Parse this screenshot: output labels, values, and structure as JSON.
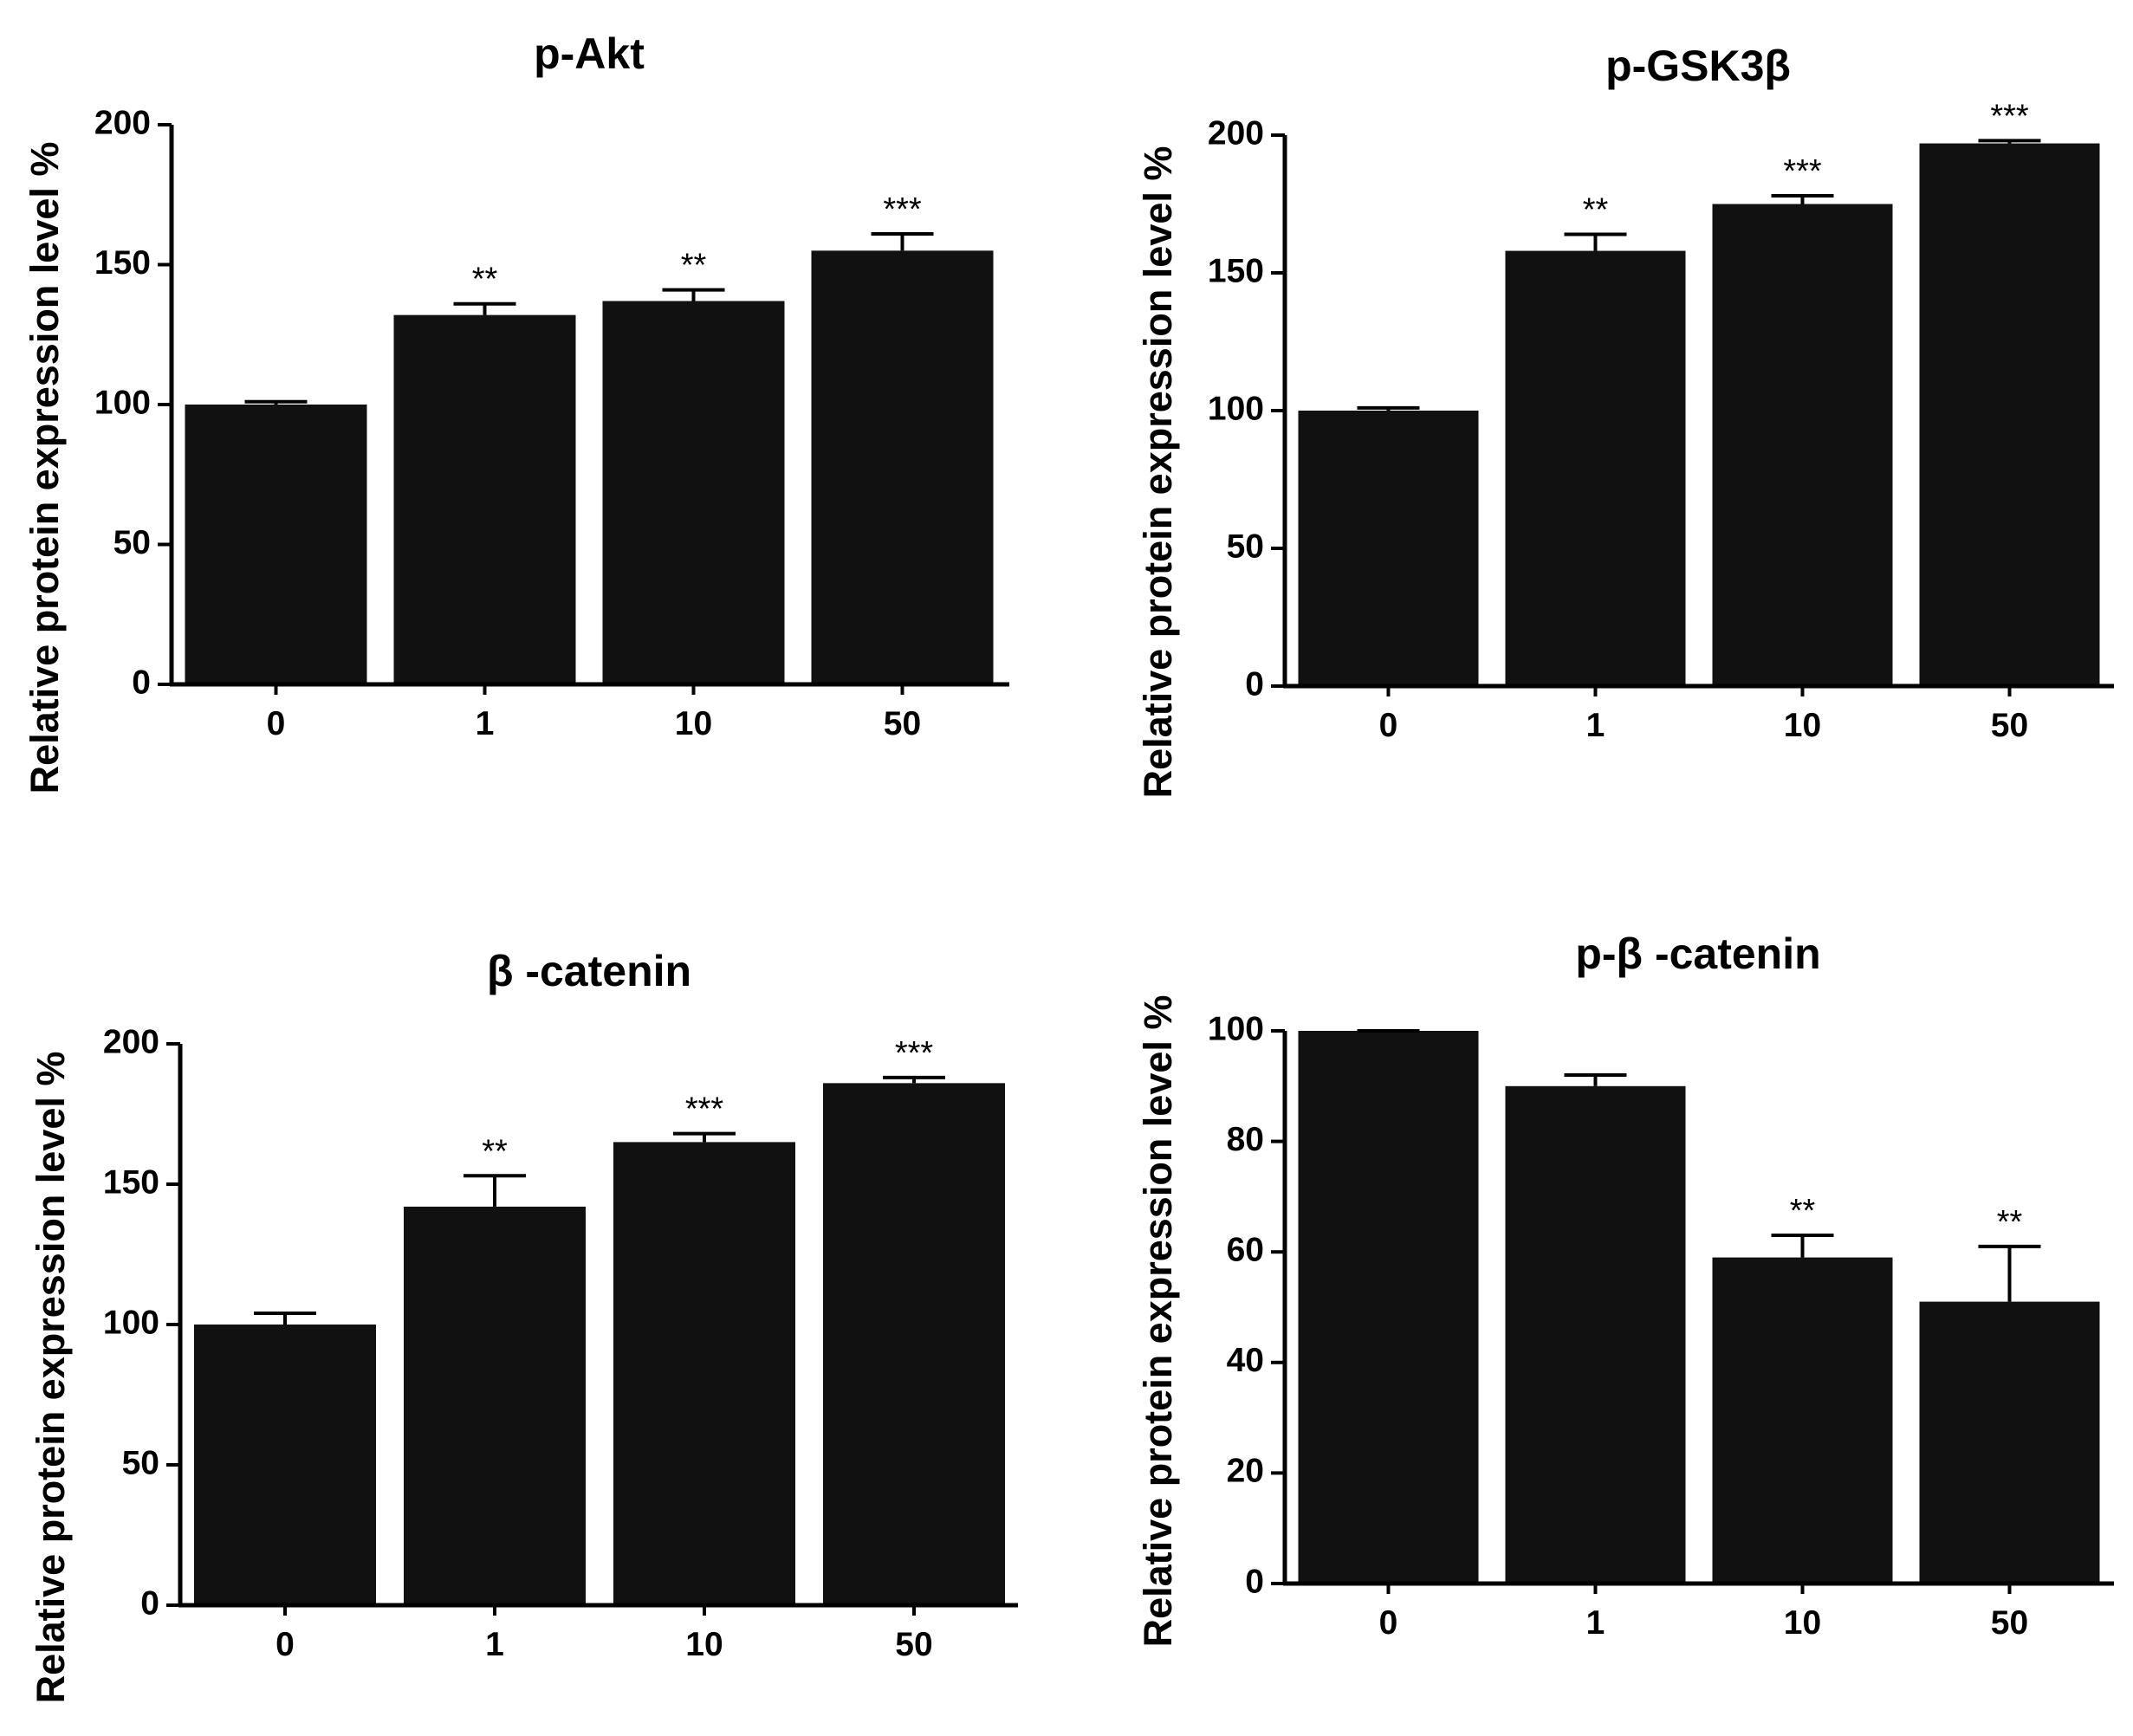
{
  "chart_data": [
    {
      "type": "bar",
      "title": "p-Akt",
      "xlabel": "",
      "ylabel": "Relative protein expression level %",
      "categories": [
        "0",
        "1",
        "10",
        "50"
      ],
      "values": [
        100,
        132,
        137,
        155
      ],
      "errors": [
        1,
        4,
        4,
        6
      ],
      "significance": [
        "",
        "**",
        "**",
        "***"
      ],
      "ylim": [
        0,
        200
      ],
      "yticks": [
        0,
        50,
        100,
        150,
        200
      ],
      "bar_color": "#111111"
    },
    {
      "type": "bar",
      "title": "p-GSK3β",
      "xlabel": "",
      "ylabel": "Relative protein expression level %",
      "categories": [
        "0",
        "1",
        "10",
        "50"
      ],
      "values": [
        100,
        158,
        175,
        197
      ],
      "errors": [
        1,
        6,
        3,
        1
      ],
      "significance": [
        "",
        "**",
        "***",
        "***"
      ],
      "ylim": [
        0,
        200
      ],
      "yticks": [
        0,
        50,
        100,
        150,
        200
      ],
      "bar_color": "#111111"
    },
    {
      "type": "bar",
      "title": "β -catenin",
      "xlabel": "",
      "ylabel": "Relative protein expression level %",
      "categories": [
        "0",
        "1",
        "10",
        "50"
      ],
      "values": [
        100,
        142,
        165,
        186
      ],
      "errors": [
        4,
        11,
        3,
        2
      ],
      "significance": [
        "",
        "**",
        "***",
        "***"
      ],
      "ylim": [
        0,
        200
      ],
      "yticks": [
        0,
        50,
        100,
        150,
        200
      ],
      "bar_color": "#111111"
    },
    {
      "type": "bar",
      "title": "p-β -catenin",
      "xlabel": "",
      "ylabel": "Relative protein expression level %",
      "categories": [
        "0",
        "1",
        "10",
        "50"
      ],
      "values": [
        100,
        90,
        59,
        51
      ],
      "errors": [
        0,
        2,
        4,
        10
      ],
      "significance": [
        "",
        "",
        "**",
        "**"
      ],
      "ylim": [
        0,
        100
      ],
      "yticks": [
        0,
        20,
        40,
        60,
        80,
        100
      ],
      "bar_color": "#111111"
    }
  ]
}
